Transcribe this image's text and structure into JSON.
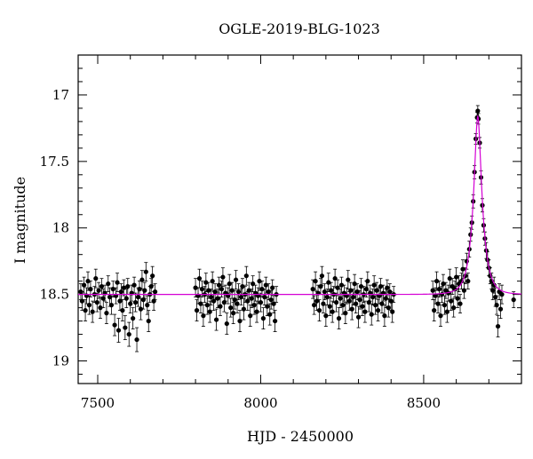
{
  "chart_data": {
    "type": "scatter",
    "title": "OGLE-2019-BLG-1023",
    "xlabel": "HJD - 2450000",
    "ylabel": "I magnitude",
    "xlim": [
      7440,
      8800
    ],
    "ylim": [
      19.17,
      16.7
    ],
    "y_inverted": true,
    "grid": false,
    "x_ticks": [
      7500,
      8000,
      8500
    ],
    "y_ticks": [
      17,
      17.5,
      18,
      18.5,
      19
    ],
    "x_tick_labels": [
      "7500",
      "8000",
      "8500"
    ],
    "y_tick_labels": [
      "17",
      "17.5",
      "18",
      "18.5",
      "19"
    ],
    "baseline_mag": 18.5,
    "series": [
      {
        "kind": "points_with_errorbars",
        "color": "#000000",
        "points": [
          [
            7448,
            18.48,
            0.06
          ],
          [
            7452,
            18.55,
            0.07
          ],
          [
            7458,
            18.43,
            0.06
          ],
          [
            7462,
            18.62,
            0.08
          ],
          [
            7466,
            18.51,
            0.06
          ],
          [
            7470,
            18.4,
            0.07
          ],
          [
            7474,
            18.58,
            0.07
          ],
          [
            7478,
            18.46,
            0.06
          ],
          [
            7484,
            18.63,
            0.08
          ],
          [
            7490,
            18.5,
            0.06
          ],
          [
            7494,
            18.38,
            0.07
          ],
          [
            7498,
            18.56,
            0.07
          ],
          [
            7503,
            18.47,
            0.06
          ],
          [
            7508,
            18.6,
            0.08
          ],
          [
            7512,
            18.44,
            0.06
          ],
          [
            7517,
            18.53,
            0.07
          ],
          [
            7522,
            18.49,
            0.06
          ],
          [
            7527,
            18.64,
            0.08
          ],
          [
            7532,
            18.42,
            0.06
          ],
          [
            7537,
            18.52,
            0.07
          ],
          [
            7542,
            18.58,
            0.07
          ],
          [
            7547,
            18.46,
            0.06
          ],
          [
            7552,
            18.73,
            0.08
          ],
          [
            7556,
            18.51,
            0.06
          ],
          [
            7560,
            18.41,
            0.07
          ],
          [
            7564,
            18.77,
            0.09
          ],
          [
            7568,
            18.55,
            0.07
          ],
          [
            7572,
            18.48,
            0.06
          ],
          [
            7576,
            18.62,
            0.08
          ],
          [
            7580,
            18.45,
            0.06
          ],
          [
            7584,
            18.75,
            0.09
          ],
          [
            7588,
            18.53,
            0.07
          ],
          [
            7592,
            18.44,
            0.06
          ],
          [
            7596,
            18.8,
            0.09
          ],
          [
            7600,
            18.57,
            0.07
          ],
          [
            7604,
            18.49,
            0.06
          ],
          [
            7608,
            18.68,
            0.08
          ],
          [
            7612,
            18.43,
            0.06
          ],
          [
            7616,
            18.56,
            0.07
          ],
          [
            7620,
            18.84,
            0.09
          ],
          [
            7624,
            18.52,
            0.07
          ],
          [
            7628,
            18.46,
            0.06
          ],
          [
            7632,
            18.61,
            0.08
          ],
          [
            7636,
            18.39,
            0.07
          ],
          [
            7640,
            18.54,
            0.07
          ],
          [
            7644,
            18.47,
            0.06
          ],
          [
            7648,
            18.33,
            0.07
          ],
          [
            7652,
            18.58,
            0.07
          ],
          [
            7656,
            18.7,
            0.08
          ],
          [
            7660,
            18.5,
            0.06
          ],
          [
            7664,
            18.44,
            0.06
          ],
          [
            7668,
            18.36,
            0.07
          ],
          [
            7672,
            18.55,
            0.07
          ],
          [
            7676,
            18.48,
            0.06
          ],
          [
            7800,
            18.45,
            0.07
          ],
          [
            7804,
            18.62,
            0.08
          ],
          [
            7808,
            18.51,
            0.06
          ],
          [
            7812,
            18.38,
            0.07
          ],
          [
            7816,
            18.57,
            0.07
          ],
          [
            7820,
            18.46,
            0.06
          ],
          [
            7824,
            18.66,
            0.08
          ],
          [
            7828,
            18.5,
            0.06
          ],
          [
            7832,
            18.41,
            0.07
          ],
          [
            7836,
            18.58,
            0.07
          ],
          [
            7840,
            18.47,
            0.06
          ],
          [
            7844,
            18.63,
            0.08
          ],
          [
            7848,
            18.52,
            0.06
          ],
          [
            7852,
            18.4,
            0.07
          ],
          [
            7856,
            18.55,
            0.07
          ],
          [
            7860,
            18.48,
            0.06
          ],
          [
            7864,
            18.69,
            0.08
          ],
          [
            7868,
            18.53,
            0.07
          ],
          [
            7872,
            18.43,
            0.06
          ],
          [
            7876,
            18.59,
            0.07
          ],
          [
            7880,
            18.46,
            0.06
          ],
          [
            7884,
            18.37,
            0.07
          ],
          [
            7888,
            18.56,
            0.07
          ],
          [
            7892,
            18.49,
            0.06
          ],
          [
            7896,
            18.72,
            0.08
          ],
          [
            7900,
            18.51,
            0.06
          ],
          [
            7904,
            18.42,
            0.07
          ],
          [
            7908,
            18.6,
            0.07
          ],
          [
            7912,
            18.47,
            0.06
          ],
          [
            7916,
            18.64,
            0.08
          ],
          [
            7920,
            18.54,
            0.07
          ],
          [
            7924,
            18.39,
            0.07
          ],
          [
            7928,
            18.57,
            0.07
          ],
          [
            7932,
            18.48,
            0.06
          ],
          [
            7936,
            18.7,
            0.08
          ],
          [
            7940,
            18.52,
            0.06
          ],
          [
            7944,
            18.44,
            0.06
          ],
          [
            7948,
            18.61,
            0.08
          ],
          [
            7952,
            18.5,
            0.06
          ],
          [
            7956,
            18.36,
            0.07
          ],
          [
            7960,
            18.55,
            0.07
          ],
          [
            7964,
            18.47,
            0.06
          ],
          [
            7968,
            18.66,
            0.08
          ],
          [
            7972,
            18.53,
            0.07
          ],
          [
            7976,
            18.42,
            0.06
          ],
          [
            7980,
            18.58,
            0.07
          ],
          [
            7984,
            18.49,
            0.06
          ],
          [
            7988,
            18.63,
            0.08
          ],
          [
            7992,
            18.51,
            0.06
          ],
          [
            7996,
            18.4,
            0.07
          ],
          [
            8000,
            18.56,
            0.07
          ],
          [
            8004,
            18.46,
            0.06
          ],
          [
            8008,
            18.68,
            0.08
          ],
          [
            8012,
            18.52,
            0.06
          ],
          [
            8016,
            18.43,
            0.06
          ],
          [
            8020,
            18.59,
            0.07
          ],
          [
            8024,
            18.48,
            0.06
          ],
          [
            8028,
            18.65,
            0.08
          ],
          [
            8032,
            18.54,
            0.07
          ],
          [
            8036,
            18.45,
            0.06
          ],
          [
            8040,
            18.57,
            0.07
          ],
          [
            8044,
            18.7,
            0.08
          ],
          [
            8048,
            18.5,
            0.06
          ],
          [
            8160,
            18.46,
            0.07
          ],
          [
            8164,
            18.58,
            0.07
          ],
          [
            8168,
            18.4,
            0.07
          ],
          [
            8172,
            18.55,
            0.07
          ],
          [
            8176,
            18.49,
            0.06
          ],
          [
            8180,
            18.62,
            0.08
          ],
          [
            8184,
            18.44,
            0.06
          ],
          [
            8188,
            18.36,
            0.07
          ],
          [
            8192,
            18.57,
            0.07
          ],
          [
            8196,
            18.48,
            0.06
          ],
          [
            8200,
            18.66,
            0.08
          ],
          [
            8204,
            18.52,
            0.06
          ],
          [
            8208,
            18.41,
            0.07
          ],
          [
            8212,
            18.59,
            0.07
          ],
          [
            8216,
            18.47,
            0.06
          ],
          [
            8220,
            18.63,
            0.08
          ],
          [
            8224,
            18.5,
            0.06
          ],
          [
            8228,
            18.38,
            0.07
          ],
          [
            8232,
            18.56,
            0.07
          ],
          [
            8236,
            18.45,
            0.06
          ],
          [
            8240,
            18.68,
            0.08
          ],
          [
            8244,
            18.53,
            0.07
          ],
          [
            8248,
            18.43,
            0.06
          ],
          [
            8252,
            18.58,
            0.07
          ],
          [
            8256,
            18.49,
            0.06
          ],
          [
            8260,
            18.64,
            0.08
          ],
          [
            8264,
            18.51,
            0.06
          ],
          [
            8268,
            18.39,
            0.07
          ],
          [
            8272,
            18.55,
            0.07
          ],
          [
            8276,
            18.47,
            0.06
          ],
          [
            8280,
            18.61,
            0.08
          ],
          [
            8284,
            18.52,
            0.06
          ],
          [
            8288,
            18.42,
            0.07
          ],
          [
            8292,
            18.57,
            0.07
          ],
          [
            8296,
            18.48,
            0.06
          ],
          [
            8300,
            18.67,
            0.08
          ],
          [
            8304,
            18.54,
            0.07
          ],
          [
            8308,
            18.44,
            0.06
          ],
          [
            8312,
            18.59,
            0.07
          ],
          [
            8316,
            18.5,
            0.06
          ],
          [
            8320,
            18.63,
            0.08
          ],
          [
            8324,
            18.46,
            0.06
          ],
          [
            8328,
            18.4,
            0.07
          ],
          [
            8332,
            18.56,
            0.07
          ],
          [
            8336,
            18.49,
            0.06
          ],
          [
            8340,
            18.65,
            0.08
          ],
          [
            8344,
            18.52,
            0.06
          ],
          [
            8348,
            18.43,
            0.07
          ],
          [
            8352,
            18.58,
            0.07
          ],
          [
            8356,
            18.47,
            0.06
          ],
          [
            8360,
            18.62,
            0.08
          ],
          [
            8364,
            18.51,
            0.06
          ],
          [
            8368,
            18.44,
            0.06
          ],
          [
            8372,
            18.57,
            0.07
          ],
          [
            8376,
            18.49,
            0.06
          ],
          [
            8380,
            18.66,
            0.08
          ],
          [
            8384,
            18.53,
            0.07
          ],
          [
            8388,
            18.45,
            0.06
          ],
          [
            8392,
            18.6,
            0.07
          ],
          [
            8396,
            18.48,
            0.06
          ],
          [
            8400,
            18.55,
            0.07
          ],
          [
            8404,
            18.63,
            0.08
          ],
          [
            8408,
            18.5,
            0.06
          ],
          [
            8528,
            18.47,
            0.07
          ],
          [
            8532,
            18.62,
            0.08
          ],
          [
            8536,
            18.51,
            0.06
          ],
          [
            8540,
            18.4,
            0.07
          ],
          [
            8544,
            18.57,
            0.07
          ],
          [
            8548,
            18.46,
            0.06
          ],
          [
            8552,
            18.66,
            0.08
          ],
          [
            8556,
            18.5,
            0.06
          ],
          [
            8560,
            18.42,
            0.07
          ],
          [
            8564,
            18.58,
            0.07
          ],
          [
            8568,
            18.47,
            0.06
          ],
          [
            8572,
            18.63,
            0.08
          ],
          [
            8576,
            18.49,
            0.06
          ],
          [
            8580,
            18.38,
            0.07
          ],
          [
            8584,
            18.55,
            0.07
          ],
          [
            8588,
            18.44,
            0.06
          ],
          [
            8592,
            18.6,
            0.07
          ],
          [
            8596,
            18.46,
            0.06
          ],
          [
            8600,
            18.37,
            0.07
          ],
          [
            8604,
            18.53,
            0.07
          ],
          [
            8608,
            18.42,
            0.06
          ],
          [
            8612,
            18.57,
            0.07
          ],
          [
            8616,
            18.4,
            0.06
          ],
          [
            8620,
            18.31,
            0.07
          ],
          [
            8624,
            18.47,
            0.06
          ],
          [
            8628,
            18.36,
            0.06
          ],
          [
            8632,
            18.25,
            0.06
          ],
          [
            8636,
            18.4,
            0.06
          ],
          [
            8640,
            18.16,
            0.06
          ],
          [
            8644,
            18.05,
            0.05
          ],
          [
            8648,
            17.96,
            0.05
          ],
          [
            8652,
            17.8,
            0.05
          ],
          [
            8656,
            17.58,
            0.05
          ],
          [
            8660,
            17.33,
            0.04
          ],
          [
            8664,
            17.17,
            0.04
          ],
          [
            8666,
            17.12,
            0.04
          ],
          [
            8668,
            17.18,
            0.04
          ],
          [
            8672,
            17.36,
            0.04
          ],
          [
            8676,
            17.62,
            0.05
          ],
          [
            8680,
            17.83,
            0.05
          ],
          [
            8684,
            17.98,
            0.05
          ],
          [
            8688,
            18.08,
            0.05
          ],
          [
            8692,
            18.17,
            0.06
          ],
          [
            8696,
            18.24,
            0.06
          ],
          [
            8700,
            18.3,
            0.06
          ],
          [
            8704,
            18.36,
            0.06
          ],
          [
            8708,
            18.4,
            0.06
          ],
          [
            8712,
            18.47,
            0.07
          ],
          [
            8716,
            18.43,
            0.06
          ],
          [
            8720,
            18.52,
            0.07
          ],
          [
            8724,
            18.58,
            0.07
          ],
          [
            8728,
            18.74,
            0.08
          ],
          [
            8732,
            18.48,
            0.06
          ],
          [
            8736,
            18.61,
            0.07
          ],
          [
            8740,
            18.5,
            0.07
          ],
          [
            8776,
            18.54,
            0.06
          ]
        ]
      },
      {
        "kind": "model_curve",
        "color": "#d400d4",
        "peak_time": 8666,
        "peak_mag": 17.16,
        "tE": 28.0
      }
    ]
  }
}
